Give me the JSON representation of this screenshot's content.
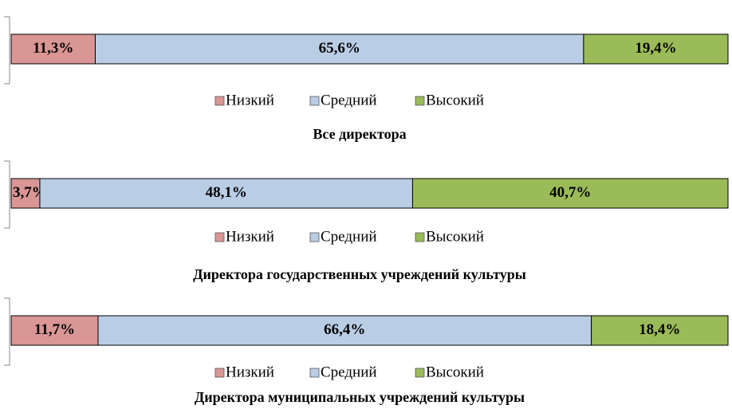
{
  "chart_data": [
    {
      "type": "stacked-bar",
      "title": "Все директора",
      "xlim": [
        0,
        96.3
      ],
      "series": [
        {
          "name": "Низкий",
          "color": "#d99694",
          "values": [
            11.3
          ],
          "value_labels": [
            "11,3%"
          ]
        },
        {
          "name": "Средний",
          "color": "#b9cde5",
          "values": [
            65.6
          ],
          "value_labels": [
            "65,6%"
          ]
        },
        {
          "name": "Высокий",
          "color": "#9bbb59",
          "values": [
            19.4
          ],
          "value_labels": [
            "19,4%"
          ]
        }
      ]
    },
    {
      "type": "stacked-bar",
      "title": "Директора государственных учреждений культуры",
      "xlim": [
        0,
        92.5
      ],
      "series": [
        {
          "name": "Низкий",
          "color": "#d99694",
          "values": [
            3.7
          ],
          "value_labels": [
            "3,7%"
          ]
        },
        {
          "name": "Средний",
          "color": "#b9cde5",
          "values": [
            48.1
          ],
          "value_labels": [
            "48,1%"
          ]
        },
        {
          "name": "Высокий",
          "color": "#9bbb59",
          "values": [
            40.7
          ],
          "value_labels": [
            "40,7%"
          ]
        }
      ]
    },
    {
      "type": "stacked-bar",
      "title": "Директора муниципальных учреждений культуры",
      "xlim": [
        0,
        96.5
      ],
      "series": [
        {
          "name": "Низкий",
          "color": "#d99694",
          "values": [
            11.7
          ],
          "value_labels": [
            "11,7%"
          ]
        },
        {
          "name": "Средний",
          "color": "#b9cde5",
          "values": [
            66.4
          ],
          "value_labels": [
            "66,4%"
          ]
        },
        {
          "name": "Высокий",
          "color": "#9bbb59",
          "values": [
            18.4
          ],
          "value_labels": [
            "18,4%"
          ]
        }
      ]
    }
  ]
}
